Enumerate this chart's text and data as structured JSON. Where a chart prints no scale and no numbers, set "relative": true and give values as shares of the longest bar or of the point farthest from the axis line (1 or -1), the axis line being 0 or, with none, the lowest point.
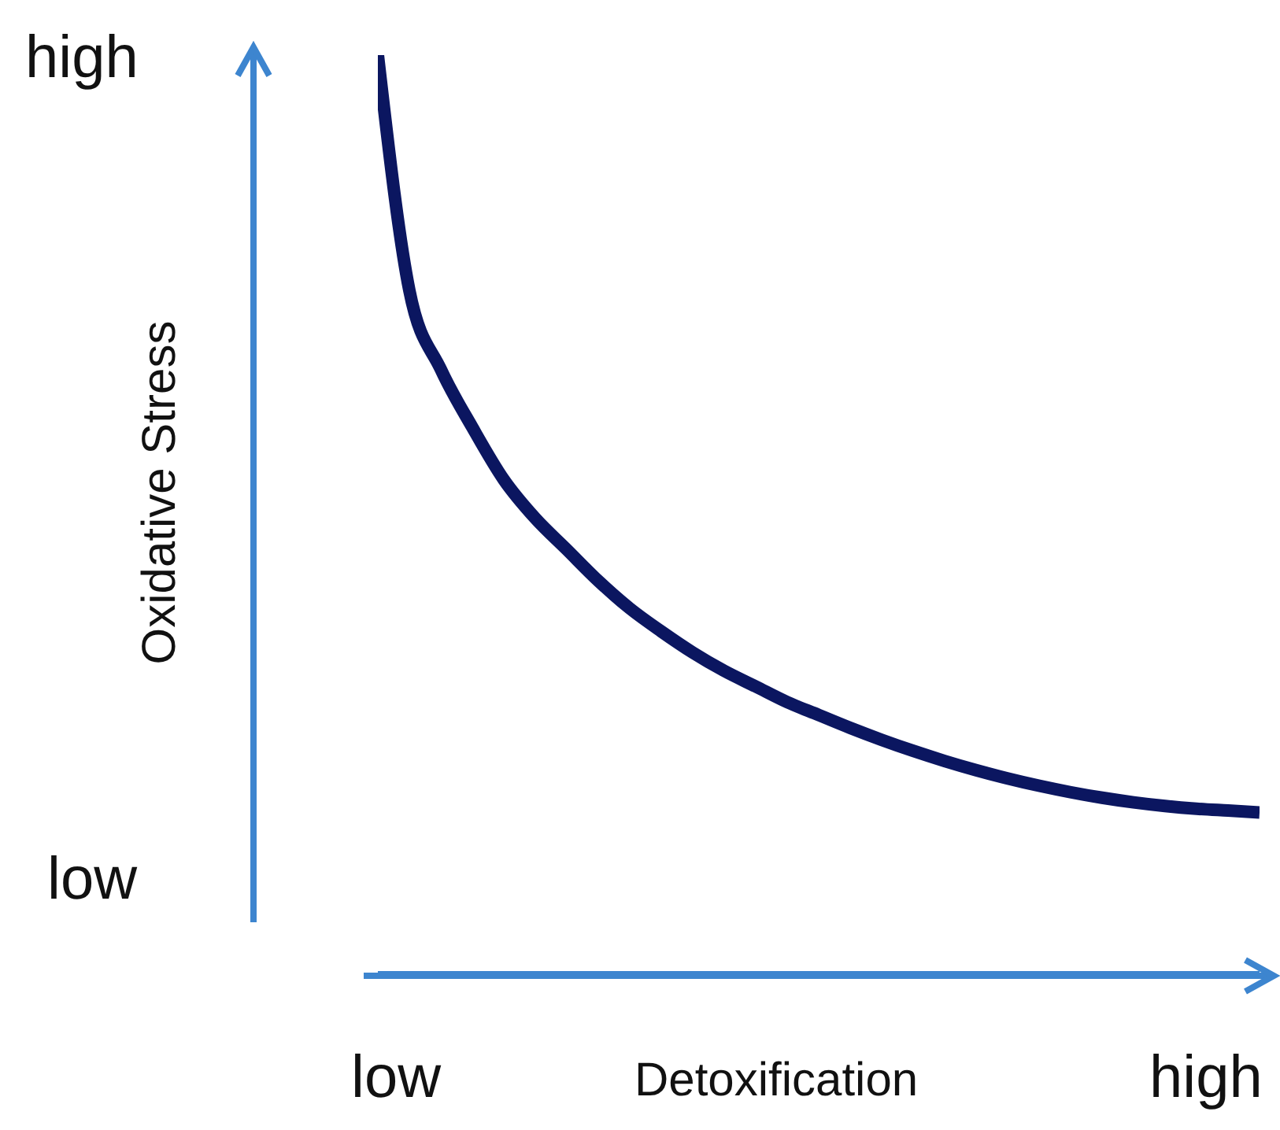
{
  "chart_data": {
    "type": "line",
    "relative": true,
    "xlabel": "Detoxification",
    "ylabel": "Oxidative Stress",
    "categories": [
      null,
      null,
      null,
      null,
      null,
      null,
      null,
      null,
      null,
      null,
      null,
      null,
      null,
      null,
      null,
      null,
      null,
      null,
      null,
      null,
      null,
      null,
      null,
      null,
      null,
      null,
      null,
      null,
      null
    ],
    "series": [
      {
        "color": "#0b1660",
        "values": [
          1.0,
          0.744,
          0.658,
          0.595,
          0.538,
          0.496,
          0.462,
          0.428,
          0.398,
          0.373,
          0.35,
          0.33,
          0.313,
          0.296,
          0.282,
          0.268,
          0.255,
          0.243,
          0.232,
          0.222,
          0.213,
          0.205,
          0.198,
          0.192,
          0.187,
          0.183,
          0.18,
          0.178,
          0.176
        ]
      }
    ],
    "annotations": [
      "high",
      "low",
      "low",
      "high"
    ],
    "marker": "none",
    "line_style": "solid",
    "grid": false,
    "legend": false
  }
}
